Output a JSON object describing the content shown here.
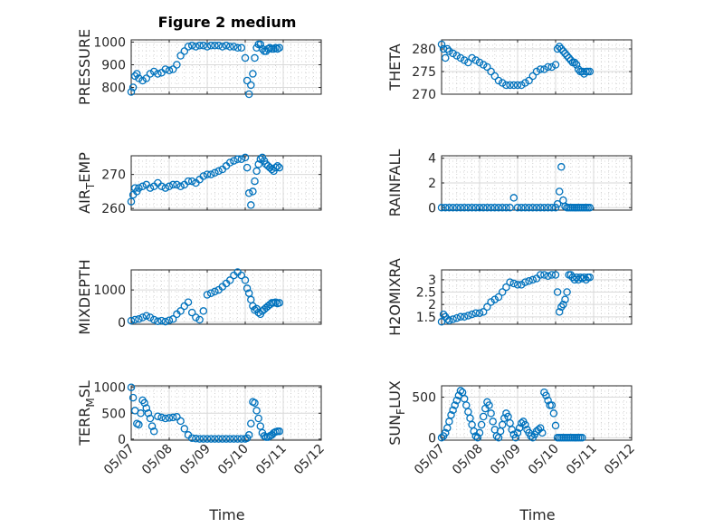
{
  "figure": {
    "title": "Figure 2 medium",
    "xlabel": "Time"
  },
  "colors": {
    "marker": "#0072bd",
    "axes": "#262626",
    "grid": "#d9d9d9"
  },
  "chart_data": [
    {
      "type": "scatter",
      "name": "pressure",
      "ylabel_main": "PRESSURE",
      "ylabel_sub": "",
      "ylim": [
        770,
        1010
      ],
      "yticks": [
        800,
        900,
        1000
      ],
      "xlim": [
        0,
        5
      ],
      "xticklabels": [
        "05/07",
        "05/08",
        "05/09",
        "05/10",
        "05/11",
        "05/12"
      ],
      "show_xticklabels": false,
      "x": [
        0,
        0.05,
        0.1,
        0.15,
        0.2,
        0.3,
        0.4,
        0.5,
        0.6,
        0.7,
        0.8,
        0.9,
        1,
        1.1,
        1.2,
        1.3,
        1.4,
        1.5,
        1.6,
        1.7,
        1.8,
        1.9,
        2,
        2.1,
        2.2,
        2.3,
        2.4,
        2.5,
        2.6,
        2.7,
        2.8,
        2.9,
        3,
        3.05,
        3.1,
        3.15,
        3.2,
        3.25,
        3.3,
        3.35,
        3.4,
        3.45,
        3.5,
        3.55,
        3.6,
        3.65,
        3.7,
        3.75,
        3.8,
        3.85,
        3.9
      ],
      "y": [
        780,
        800,
        850,
        860,
        840,
        830,
        840,
        860,
        870,
        860,
        865,
        880,
        875,
        880,
        900,
        940,
        960,
        980,
        985,
        980,
        985,
        985,
        980,
        985,
        985,
        985,
        980,
        985,
        980,
        980,
        975,
        975,
        930,
        830,
        770,
        810,
        860,
        930,
        975,
        990,
        990,
        970,
        960,
        960,
        970,
        975,
        970,
        970,
        975,
        970,
        975
      ]
    },
    {
      "type": "scatter",
      "name": "theta",
      "ylabel_main": "THETA",
      "ylabel_sub": "",
      "ylim": [
        270,
        282
      ],
      "yticks": [
        270,
        275,
        280
      ],
      "xlim": [
        0,
        5
      ],
      "xticklabels": [
        "05/07",
        "05/08",
        "05/09",
        "05/10",
        "05/11",
        "05/12"
      ],
      "show_xticklabels": false,
      "x": [
        0,
        0.05,
        0.1,
        0.15,
        0.2,
        0.3,
        0.4,
        0.5,
        0.6,
        0.7,
        0.8,
        0.9,
        1,
        1.1,
        1.2,
        1.3,
        1.4,
        1.5,
        1.6,
        1.7,
        1.8,
        1.9,
        2,
        2.1,
        2.2,
        2.3,
        2.4,
        2.5,
        2.6,
        2.7,
        2.8,
        2.9,
        3,
        3.05,
        3.1,
        3.15,
        3.2,
        3.25,
        3.3,
        3.35,
        3.4,
        3.45,
        3.5,
        3.55,
        3.6,
        3.65,
        3.7,
        3.75,
        3.8,
        3.85,
        3.9
      ],
      "y": [
        281,
        280,
        278,
        280,
        279.5,
        279,
        278.5,
        278,
        277.5,
        277,
        278,
        277.5,
        277,
        276.5,
        276,
        275,
        274,
        273,
        272.5,
        272,
        272,
        272,
        272,
        272,
        272.5,
        273,
        274,
        275,
        275.5,
        275.5,
        276,
        276,
        276.5,
        280,
        280.5,
        280,
        279.5,
        279,
        278.5,
        278,
        277.5,
        277,
        277,
        276.5,
        275.5,
        275,
        275,
        274.5,
        275,
        275,
        275
      ]
    },
    {
      "type": "scatter",
      "name": "air_temp",
      "ylabel_main": "AIR",
      "ylabel_sub": "T",
      "ylabel_tail": "EMP",
      "ylim": [
        259.5,
        275.5
      ],
      "yticks": [
        260,
        270
      ],
      "xlim": [
        0,
        5
      ],
      "xticklabels": [
        "05/07",
        "05/08",
        "05/09",
        "05/10",
        "05/11",
        "05/12"
      ],
      "show_xticklabels": false,
      "x": [
        0,
        0.05,
        0.1,
        0.15,
        0.2,
        0.3,
        0.4,
        0.5,
        0.6,
        0.7,
        0.8,
        0.9,
        1,
        1.1,
        1.2,
        1.3,
        1.4,
        1.5,
        1.6,
        1.7,
        1.8,
        1.9,
        2,
        2.1,
        2.2,
        2.3,
        2.4,
        2.5,
        2.6,
        2.7,
        2.8,
        2.9,
        3,
        3.05,
        3.1,
        3.15,
        3.2,
        3.25,
        3.3,
        3.35,
        3.4,
        3.45,
        3.5,
        3.55,
        3.6,
        3.65,
        3.7,
        3.75,
        3.8,
        3.85,
        3.9
      ],
      "y": [
        262,
        264,
        266,
        265,
        266,
        266.5,
        267,
        266,
        266.5,
        267.5,
        266.5,
        266,
        266.5,
        267,
        267,
        266.5,
        267,
        268,
        268,
        267.5,
        268.5,
        269.5,
        270,
        270,
        270.5,
        271,
        271.5,
        272.5,
        273.5,
        274,
        274.5,
        274.5,
        275,
        272,
        264.5,
        261,
        265,
        268,
        271,
        273,
        274.5,
        275,
        274,
        273,
        272.5,
        272,
        271.5,
        271,
        272,
        272.5,
        272
      ]
    },
    {
      "type": "scatter",
      "name": "rainfall",
      "ylabel_main": "RAINFALL",
      "ylabel_sub": "",
      "ylim": [
        -0.2,
        4.2
      ],
      "yticks": [
        0,
        2,
        4
      ],
      "xlim": [
        0,
        5
      ],
      "xticklabels": [
        "05/07",
        "05/08",
        "05/09",
        "05/10",
        "05/11",
        "05/12"
      ],
      "show_xticklabels": false,
      "x": [
        0,
        0.1,
        0.2,
        0.3,
        0.4,
        0.5,
        0.6,
        0.7,
        0.8,
        0.9,
        1,
        1.1,
        1.2,
        1.3,
        1.4,
        1.5,
        1.6,
        1.7,
        1.8,
        1.9,
        2,
        2.1,
        2.2,
        2.3,
        2.4,
        2.5,
        2.6,
        2.7,
        2.8,
        2.9,
        3,
        3.05,
        3.1,
        3.15,
        3.2,
        3.25,
        3.3,
        3.35,
        3.4,
        3.45,
        3.5,
        3.55,
        3.6,
        3.65,
        3.7,
        3.75,
        3.8,
        3.85,
        3.9
      ],
      "y": [
        0,
        0,
        0,
        0,
        0,
        0,
        0,
        0,
        0,
        0,
        0,
        0,
        0,
        0,
        0,
        0,
        0,
        0,
        0,
        0.8,
        0,
        0,
        0,
        0,
        0,
        0,
        0,
        0,
        0,
        0,
        0,
        0.3,
        1.3,
        3.3,
        0.6,
        0.1,
        0,
        0,
        0,
        0,
        0,
        0,
        0,
        0,
        0,
        0,
        0,
        0,
        0
      ]
    },
    {
      "type": "scatter",
      "name": "mixdepth",
      "ylabel_main": "MIXDEPTH",
      "ylabel_sub": "",
      "ylim": [
        -60,
        1620
      ],
      "yticks": [
        0,
        1000
      ],
      "xlim": [
        0,
        5
      ],
      "xticklabels": [
        "05/07",
        "05/08",
        "05/09",
        "05/10",
        "05/11",
        "05/12"
      ],
      "show_xticklabels": false,
      "x": [
        0,
        0.1,
        0.2,
        0.3,
        0.4,
        0.5,
        0.6,
        0.7,
        0.8,
        0.9,
        1,
        1.1,
        1.2,
        1.3,
        1.4,
        1.5,
        1.6,
        1.7,
        1.8,
        1.9,
        2,
        2.1,
        2.2,
        2.3,
        2.4,
        2.5,
        2.6,
        2.7,
        2.8,
        2.9,
        3,
        3.05,
        3.1,
        3.15,
        3.2,
        3.25,
        3.3,
        3.35,
        3.4,
        3.45,
        3.5,
        3.55,
        3.6,
        3.65,
        3.7,
        3.75,
        3.8,
        3.85,
        3.9
      ],
      "y": [
        50,
        80,
        100,
        150,
        200,
        150,
        80,
        30,
        50,
        20,
        60,
        100,
        250,
        350,
        500,
        620,
        300,
        150,
        80,
        350,
        850,
        900,
        950,
        1000,
        1100,
        1200,
        1300,
        1450,
        1550,
        1450,
        1300,
        1050,
        900,
        700,
        500,
        380,
        420,
        300,
        250,
        350,
        400,
        450,
        500,
        550,
        600,
        600,
        620,
        580,
        600
      ]
    },
    {
      "type": "scatter",
      "name": "h2omixra",
      "ylabel_main": "H2OMIXRA",
      "ylabel_sub": "",
      "ylim": [
        1.2,
        3.4
      ],
      "yticks": [
        1.5,
        2,
        2.5,
        3
      ],
      "xlim": [
        0,
        5
      ],
      "xticklabels": [
        "05/07",
        "05/08",
        "05/09",
        "05/10",
        "05/11",
        "05/12"
      ],
      "show_xticklabels": false,
      "x": [
        0,
        0.05,
        0.1,
        0.15,
        0.2,
        0.3,
        0.4,
        0.5,
        0.6,
        0.7,
        0.8,
        0.9,
        1,
        1.1,
        1.2,
        1.3,
        1.4,
        1.5,
        1.6,
        1.7,
        1.8,
        1.9,
        2,
        2.1,
        2.2,
        2.3,
        2.4,
        2.5,
        2.6,
        2.7,
        2.8,
        2.9,
        3,
        3.05,
        3.1,
        3.15,
        3.2,
        3.25,
        3.3,
        3.35,
        3.4,
        3.45,
        3.5,
        3.55,
        3.6,
        3.65,
        3.7,
        3.75,
        3.8,
        3.85,
        3.9
      ],
      "y": [
        1.3,
        1.6,
        1.5,
        1.4,
        1.35,
        1.4,
        1.45,
        1.5,
        1.5,
        1.55,
        1.6,
        1.65,
        1.65,
        1.7,
        1.9,
        2.1,
        2.2,
        2.3,
        2.5,
        2.7,
        2.9,
        2.85,
        2.8,
        2.8,
        2.9,
        2.95,
        3,
        3.05,
        3.2,
        3.2,
        3.15,
        3.2,
        3.2,
        2.5,
        1.7,
        1.9,
        2,
        2.2,
        2.5,
        3.2,
        3.2,
        3.1,
        3.0,
        3.1,
        3.0,
        3.1,
        3.05,
        3.1,
        3.0,
        3.1,
        3.1
      ]
    },
    {
      "type": "scatter",
      "name": "terr_msl",
      "ylabel_main": "TERR",
      "ylabel_sub": "M",
      "ylabel_tail": "SL",
      "ylim": [
        -20,
        1030
      ],
      "yticks": [
        0,
        500,
        1000
      ],
      "xlim": [
        0,
        5
      ],
      "xticklabels": [
        "05/07",
        "05/08",
        "05/09",
        "05/10",
        "05/11",
        "05/12"
      ],
      "show_xticklabels": true,
      "x": [
        0,
        0.05,
        0.1,
        0.15,
        0.2,
        0.25,
        0.3,
        0.35,
        0.4,
        0.45,
        0.5,
        0.55,
        0.6,
        0.7,
        0.8,
        0.9,
        1,
        1.1,
        1.2,
        1.3,
        1.4,
        1.5,
        1.6,
        1.7,
        1.8,
        1.9,
        2,
        2.1,
        2.2,
        2.3,
        2.4,
        2.5,
        2.6,
        2.7,
        2.8,
        2.9,
        3,
        3.05,
        3.1,
        3.15,
        3.2,
        3.25,
        3.3,
        3.35,
        3.4,
        3.45,
        3.5,
        3.55,
        3.6,
        3.65,
        3.7,
        3.75,
        3.8,
        3.85,
        3.9
      ],
      "y": [
        1000,
        800,
        550,
        300,
        280,
        500,
        750,
        700,
        600,
        500,
        400,
        250,
        150,
        440,
        420,
        400,
        410,
        420,
        430,
        350,
        200,
        80,
        20,
        10,
        5,
        5,
        5,
        5,
        5,
        5,
        5,
        5,
        5,
        5,
        5,
        5,
        5,
        20,
        80,
        300,
        720,
        700,
        550,
        400,
        250,
        120,
        60,
        40,
        40,
        60,
        80,
        120,
        140,
        150,
        150
      ]
    },
    {
      "type": "scatter",
      "name": "sun_flux",
      "ylabel_main": "SUN",
      "ylabel_sub": "F",
      "ylabel_tail": "LUX",
      "ylim": [
        -30,
        640
      ],
      "yticks": [
        0,
        500
      ],
      "xlim": [
        0,
        5
      ],
      "xticklabels": [
        "05/07",
        "05/08",
        "05/09",
        "05/10",
        "05/11",
        "05/12"
      ],
      "show_xticklabels": true,
      "x": [
        0,
        0.05,
        0.1,
        0.15,
        0.2,
        0.25,
        0.3,
        0.35,
        0.4,
        0.45,
        0.5,
        0.55,
        0.6,
        0.65,
        0.7,
        0.75,
        0.8,
        0.85,
        0.9,
        0.95,
        1,
        1.05,
        1.1,
        1.15,
        1.2,
        1.25,
        1.3,
        1.35,
        1.4,
        1.45,
        1.5,
        1.55,
        1.6,
        1.65,
        1.7,
        1.75,
        1.8,
        1.85,
        1.9,
        1.95,
        2,
        2.05,
        2.1,
        2.15,
        2.2,
        2.25,
        2.3,
        2.35,
        2.4,
        2.45,
        2.5,
        2.55,
        2.6,
        2.65,
        2.7,
        2.75,
        2.8,
        2.85,
        2.9,
        2.95,
        3,
        3.05,
        3.1,
        3.15,
        3.2,
        3.25,
        3.3,
        3.35,
        3.4,
        3.45,
        3.5,
        3.55,
        3.6,
        3.65,
        3.7
      ],
      "y": [
        0,
        20,
        60,
        120,
        200,
        280,
        340,
        400,
        460,
        520,
        580,
        560,
        480,
        400,
        320,
        240,
        160,
        80,
        20,
        0,
        60,
        160,
        260,
        360,
        440,
        400,
        300,
        200,
        100,
        20,
        0,
        80,
        160,
        240,
        300,
        260,
        180,
        100,
        40,
        0,
        60,
        120,
        180,
        200,
        160,
        100,
        60,
        20,
        0,
        40,
        80,
        100,
        120,
        60,
        560,
        520,
        460,
        400,
        400,
        300,
        150,
        0,
        0,
        0,
        0,
        0,
        0,
        0,
        0,
        0,
        0,
        0,
        0,
        0,
        0
      ]
    }
  ]
}
